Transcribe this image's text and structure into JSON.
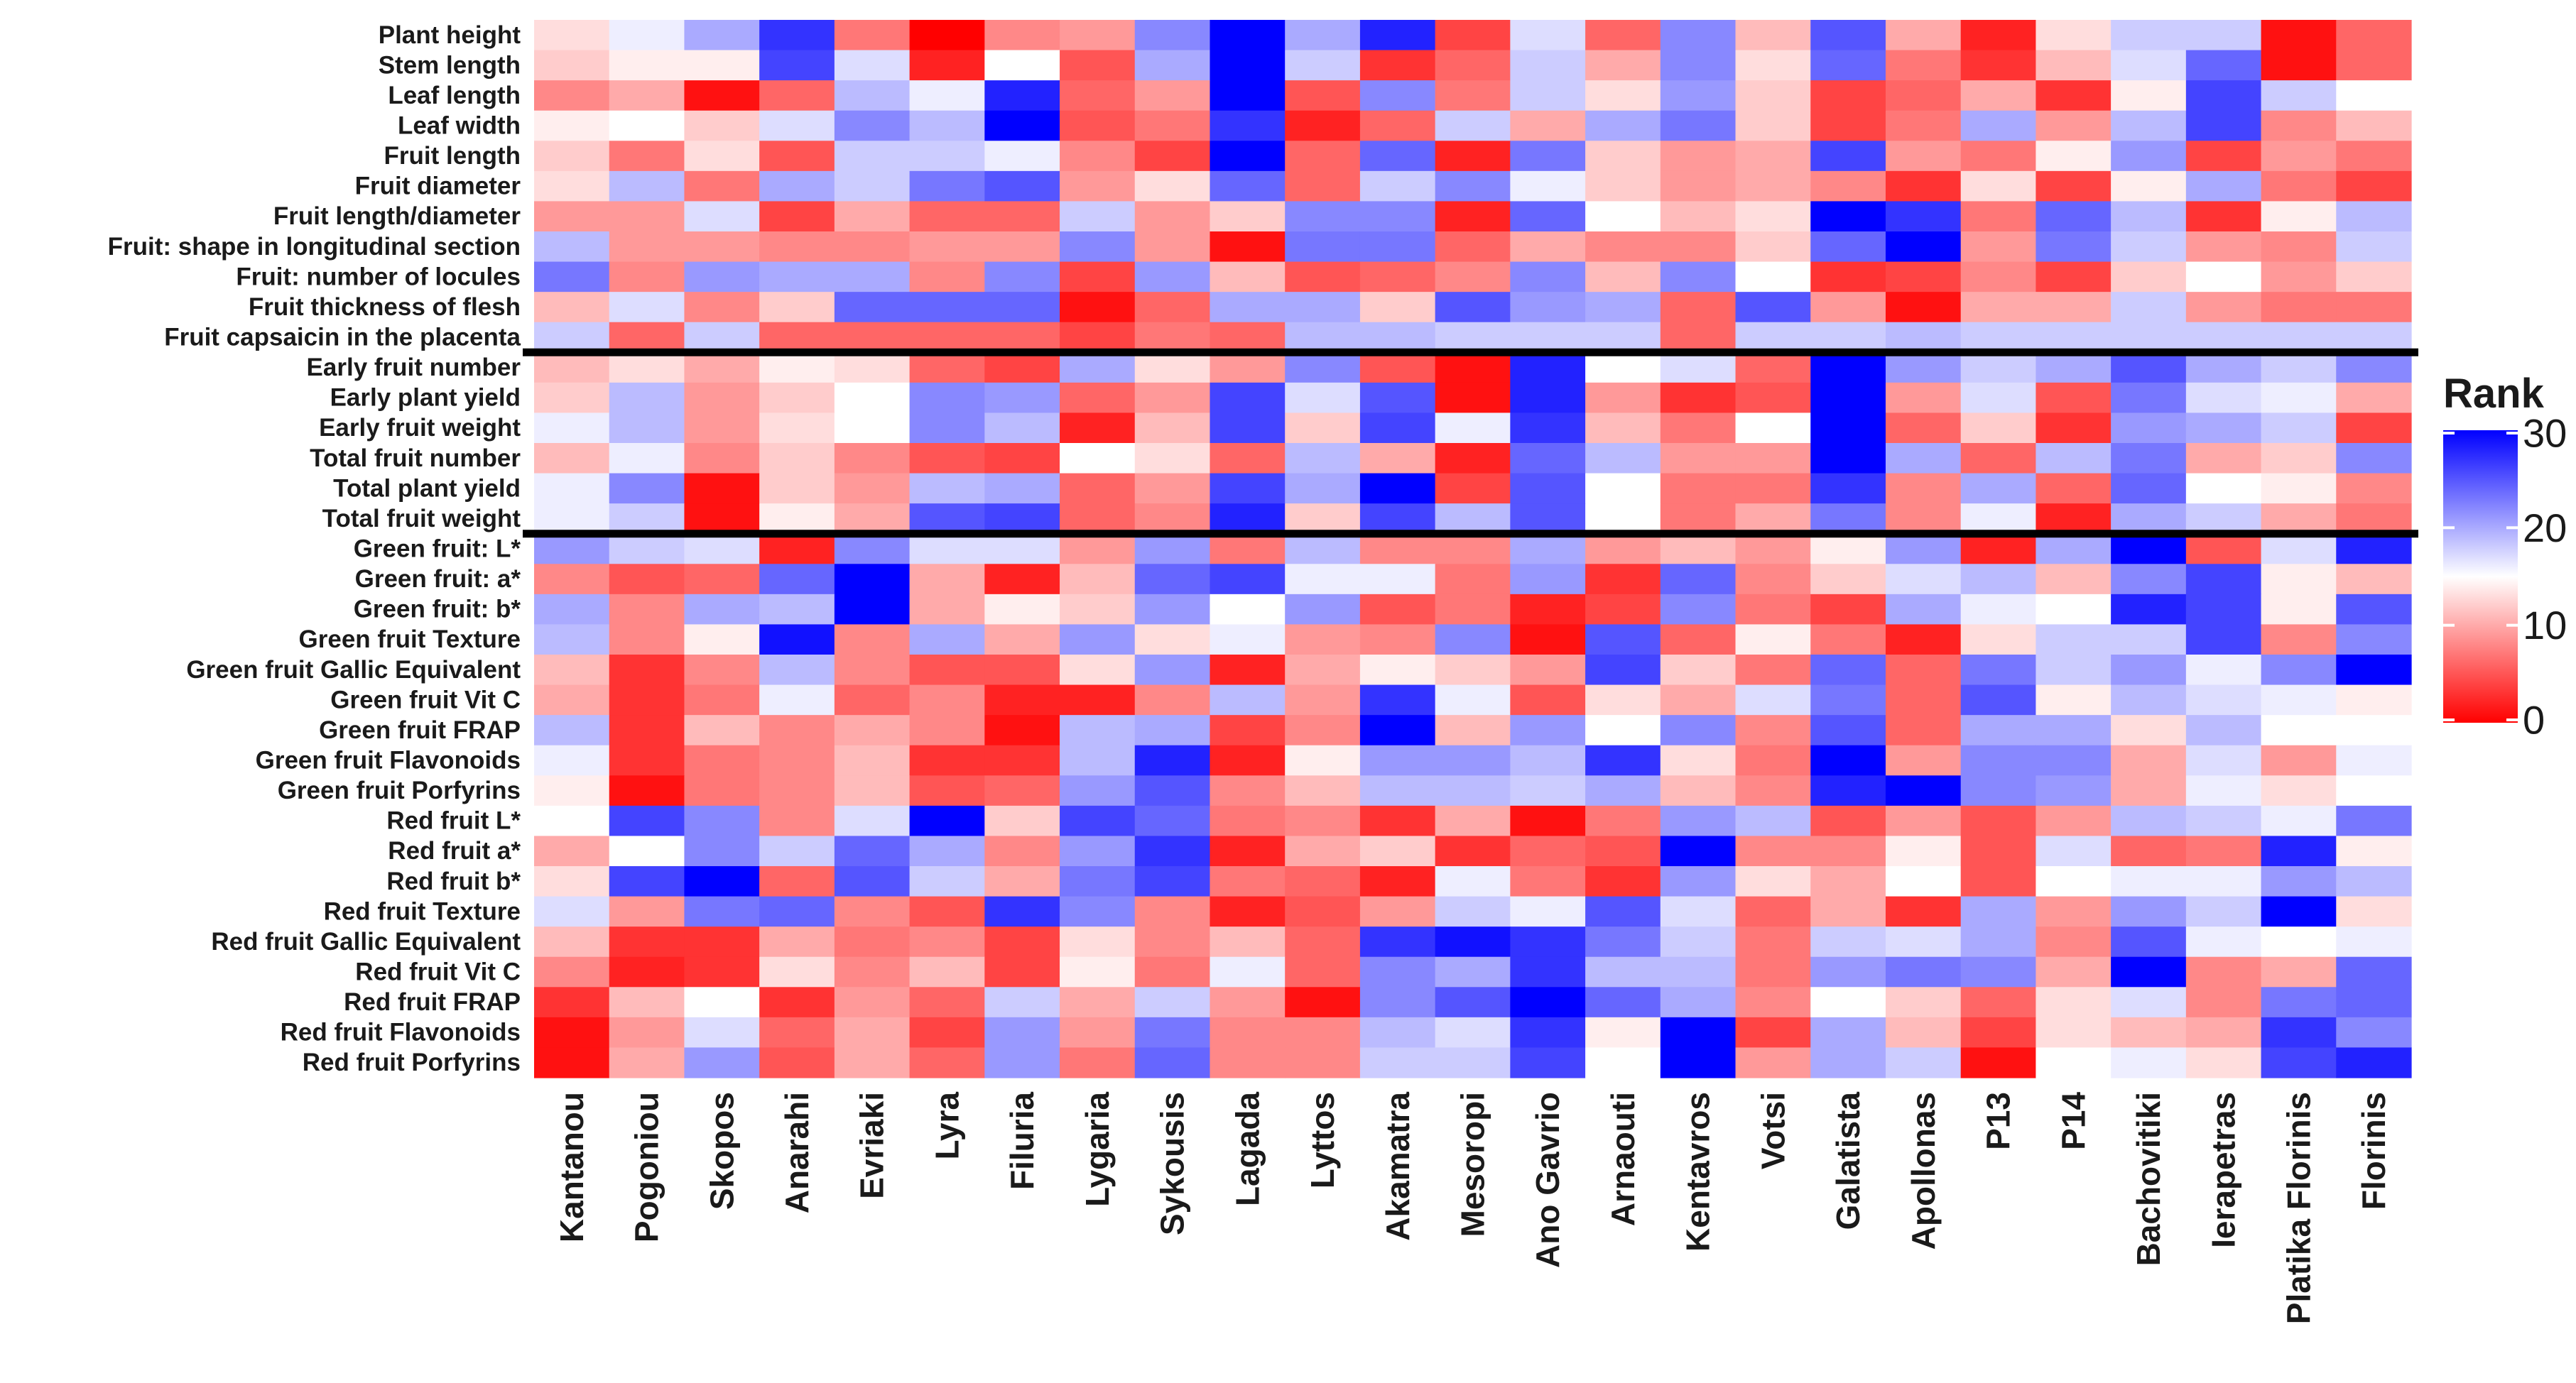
{
  "chart_data": {
    "type": "heatmap",
    "title": "",
    "xlabel": "",
    "ylabel": "",
    "legend": {
      "title": "Rank",
      "placement": "right",
      "ticks": [
        "30",
        "20",
        "10",
        "0"
      ],
      "range": [
        0,
        30
      ],
      "colors": {
        "low": "#ff0000",
        "mid": "#ffffff",
        "high": "#0000ff"
      }
    },
    "group_separators_after_rows": [
      11,
      17
    ],
    "columns": [
      "Kantanou",
      "Pogoniou",
      "Skopos",
      "Anarahi",
      "Evriaki",
      "Lyra",
      "Filuria",
      "Lygaria",
      "Sykousis",
      "Lagada",
      "Lyttos",
      "Akamatra",
      "Mesoropi",
      "Ano Gavrio",
      "Arnaouti",
      "Kentavros",
      "Votsi",
      "Galatista",
      "Apollonas",
      "P13",
      "P14",
      "Bachovitiki",
      "Ierapetras",
      "Platika Florinis",
      "Florinis"
    ],
    "rows": [
      "Plant height",
      "Stem length",
      "Leaf length",
      "Leaf width",
      "Fruit length",
      "Fruit diameter",
      "Fruit length/diameter",
      "Fruit: shape in longitudinal section",
      "Fruit: number of locules",
      "Fruit thickness  of flesh",
      "Fruit capsaicin in the placenta",
      "Early fruit number",
      "Early plant yield",
      "Early fruit weight",
      "Total fruit number",
      "Total plant yield",
      "Total fruit weight",
      "Green fruit: L*",
      "Green fruit: a*",
      "Green fruit: b*",
      "Green fruit Texture",
      "Green fruit Gallic Equivalent",
      "Green fruit Vit C",
      "Green fruit FRAP",
      "Green fruit Flavonoids",
      "Green fruit Porfyrins",
      "Red fruit L*",
      "Red fruit a*",
      "Red fruit b*",
      "Red fruit Texture",
      "Red fruit Gallic Equivalent",
      "Red fruit Vit C",
      "Red fruit FRAP",
      "Red fruit Flavonoids",
      "Red fruit Porfyrins"
    ],
    "values": [
      [
        13,
        16,
        20,
        27,
        7,
        0,
        8,
        9,
        22,
        30,
        20,
        28,
        4,
        17,
        6,
        22,
        11,
        25,
        10,
        2,
        13,
        18,
        18,
        1,
        6
      ],
      [
        12,
        14,
        14,
        26,
        17,
        2,
        15,
        5,
        20,
        30,
        18,
        3,
        6,
        18,
        10,
        22,
        13,
        24,
        7,
        3,
        11,
        17,
        24,
        1,
        6
      ],
      [
        8,
        10,
        1,
        6,
        19,
        16,
        28,
        6,
        9,
        30,
        5,
        22,
        7,
        18,
        13,
        21,
        12,
        4,
        6,
        10,
        3,
        14,
        26,
        18,
        15
      ],
      [
        14,
        15,
        12,
        17,
        22,
        19,
        30,
        5,
        7,
        27,
        2,
        6,
        18,
        10,
        20,
        23,
        12,
        4,
        7,
        20,
        9,
        19,
        26,
        8,
        11
      ],
      [
        12,
        7,
        13,
        5,
        18,
        18,
        16,
        8,
        4,
        30,
        6,
        24,
        2,
        23,
        12,
        9,
        10,
        26,
        9,
        7,
        14,
        21,
        4,
        9,
        7
      ],
      [
        13,
        19,
        7,
        20,
        18,
        23,
        25,
        9,
        13,
        24,
        6,
        18,
        22,
        16,
        12,
        9,
        10,
        8,
        3,
        13,
        4,
        14,
        20,
        7,
        4
      ],
      [
        9,
        9,
        17,
        4,
        10,
        6,
        6,
        18,
        9,
        12,
        22,
        22,
        2,
        24,
        15,
        11,
        13,
        30,
        27,
        7,
        24,
        19,
        3,
        14,
        19
      ],
      [
        19,
        9,
        9,
        8,
        8,
        9,
        9,
        22,
        9,
        1,
        23,
        23,
        6,
        10,
        8,
        8,
        12,
        24,
        30,
        9,
        23,
        18,
        9,
        8,
        18
      ],
      [
        23,
        8,
        21,
        20,
        20,
        8,
        22,
        4,
        21,
        11,
        5,
        6,
        8,
        22,
        11,
        22,
        15,
        3,
        4,
        8,
        4,
        12,
        15,
        9,
        12
      ],
      [
        11,
        17,
        8,
        12,
        24,
        24,
        24,
        1,
        6,
        20,
        20,
        12,
        25,
        21,
        20,
        6,
        25,
        9,
        1,
        10,
        10,
        18,
        9,
        7,
        7
      ],
      [
        18,
        6,
        18,
        6,
        6,
        6,
        6,
        4,
        7,
        6,
        19,
        19,
        18,
        18,
        18,
        6,
        18,
        18,
        19,
        18,
        18,
        18,
        18,
        18,
        18
      ],
      [
        11,
        13,
        10,
        14,
        13,
        6,
        4,
        20,
        13,
        9,
        22,
        5,
        1,
        28,
        15,
        17,
        6,
        30,
        21,
        18,
        20,
        25,
        20,
        18,
        22
      ],
      [
        12,
        19,
        9,
        12,
        15,
        22,
        21,
        6,
        9,
        26,
        17,
        25,
        1,
        28,
        9,
        3,
        5,
        30,
        9,
        17,
        5,
        23,
        17,
        16,
        10
      ],
      [
        16,
        19,
        9,
        13,
        15,
        22,
        19,
        2,
        11,
        26,
        12,
        26,
        16,
        27,
        11,
        7,
        15,
        30,
        6,
        12,
        3,
        21,
        20,
        18,
        4
      ],
      [
        11,
        16,
        8,
        12,
        8,
        5,
        4,
        15,
        13,
        6,
        19,
        10,
        2,
        24,
        19,
        9,
        9,
        30,
        20,
        6,
        19,
        23,
        10,
        12,
        22
      ],
      [
        16,
        22,
        1,
        12,
        9,
        19,
        20,
        6,
        9,
        26,
        20,
        30,
        4,
        25,
        15,
        7,
        7,
        27,
        8,
        20,
        6,
        24,
        15,
        14,
        8
      ],
      [
        16,
        18,
        1,
        14,
        10,
        25,
        26,
        6,
        8,
        28,
        12,
        26,
        19,
        25,
        15,
        7,
        10,
        23,
        8,
        16,
        2,
        20,
        18,
        10,
        7
      ],
      [
        21,
        18,
        17,
        2,
        22,
        17,
        17,
        9,
        21,
        7,
        19,
        8,
        8,
        20,
        9,
        11,
        9,
        14,
        21,
        2,
        20,
        30,
        5,
        17,
        28
      ],
      [
        8,
        5,
        6,
        24,
        30,
        10,
        2,
        11,
        24,
        26,
        16,
        16,
        7,
        21,
        3,
        24,
        8,
        12,
        17,
        19,
        11,
        22,
        26,
        14,
        11
      ],
      [
        20,
        8,
        20,
        19,
        30,
        10,
        14,
        12,
        21,
        15,
        21,
        5,
        7,
        2,
        4,
        22,
        7,
        4,
        20,
        16,
        15,
        28,
        26,
        14,
        25
      ],
      [
        19,
        8,
        14,
        29,
        8,
        20,
        10,
        21,
        13,
        16,
        9,
        8,
        22,
        1,
        25,
        6,
        14,
        7,
        2,
        13,
        18,
        18,
        26,
        8,
        22
      ],
      [
        11,
        3,
        8,
        19,
        8,
        5,
        5,
        13,
        21,
        2,
        10,
        14,
        12,
        9,
        26,
        12,
        7,
        24,
        6,
        23,
        18,
        21,
        16,
        22,
        30
      ],
      [
        10,
        3,
        7,
        16,
        6,
        8,
        2,
        2,
        8,
        19,
        9,
        27,
        16,
        5,
        13,
        10,
        17,
        23,
        6,
        25,
        14,
        19,
        17,
        16,
        14
      ],
      [
        19,
        3,
        11,
        8,
        10,
        8,
        1,
        19,
        20,
        4,
        8,
        30,
        11,
        21,
        15,
        22,
        8,
        25,
        6,
        20,
        20,
        13,
        19,
        15,
        15
      ],
      [
        16,
        3,
        7,
        8,
        11,
        3,
        3,
        19,
        28,
        2,
        14,
        21,
        21,
        19,
        27,
        13,
        7,
        30,
        9,
        22,
        22,
        10,
        17,
        9,
        16
      ],
      [
        14,
        1,
        7,
        8,
        11,
        5,
        6,
        21,
        25,
        8,
        11,
        19,
        19,
        18,
        20,
        11,
        8,
        28,
        30,
        22,
        21,
        10,
        16,
        13,
        15
      ],
      [
        15,
        26,
        22,
        8,
        17,
        30,
        12,
        26,
        24,
        7,
        8,
        3,
        10,
        1,
        7,
        21,
        19,
        5,
        9,
        5,
        9,
        19,
        18,
        16,
        23
      ],
      [
        10,
        15,
        22,
        18,
        24,
        20,
        8,
        21,
        27,
        2,
        10,
        12,
        3,
        6,
        5,
        30,
        8,
        8,
        14,
        5,
        17,
        6,
        7,
        28,
        14
      ],
      [
        13,
        26,
        30,
        6,
        25,
        18,
        10,
        23,
        26,
        7,
        6,
        2,
        16,
        7,
        3,
        21,
        13,
        10,
        15,
        5,
        15,
        16,
        16,
        21,
        19
      ],
      [
        17,
        9,
        23,
        24,
        8,
        5,
        27,
        22,
        8,
        2,
        5,
        9,
        18,
        16,
        25,
        17,
        6,
        10,
        3,
        20,
        9,
        21,
        18,
        30,
        13
      ],
      [
        11,
        3,
        3,
        10,
        7,
        8,
        4,
        13,
        8,
        11,
        6,
        27,
        29,
        27,
        23,
        18,
        7,
        18,
        17,
        20,
        8,
        25,
        16,
        15,
        16
      ],
      [
        8,
        2,
        3,
        13,
        8,
        11,
        4,
        14,
        7,
        16,
        6,
        22,
        20,
        27,
        19,
        19,
        7,
        21,
        23,
        22,
        10,
        30,
        8,
        10,
        24
      ],
      [
        3,
        11,
        15,
        3,
        9,
        6,
        18,
        10,
        18,
        9,
        1,
        22,
        25,
        30,
        24,
        20,
        8,
        15,
        12,
        6,
        13,
        17,
        8,
        23,
        24
      ],
      [
        1,
        9,
        17,
        6,
        10,
        4,
        21,
        9,
        23,
        8,
        8,
        19,
        17,
        27,
        14,
        30,
        4,
        20,
        11,
        4,
        13,
        11,
        10,
        27,
        22
      ],
      [
        1,
        10,
        21,
        5,
        10,
        6,
        21,
        7,
        24,
        8,
        8,
        18,
        18,
        26,
        15,
        30,
        9,
        20,
        18,
        1,
        15,
        16,
        13,
        26,
        28
      ]
    ]
  }
}
